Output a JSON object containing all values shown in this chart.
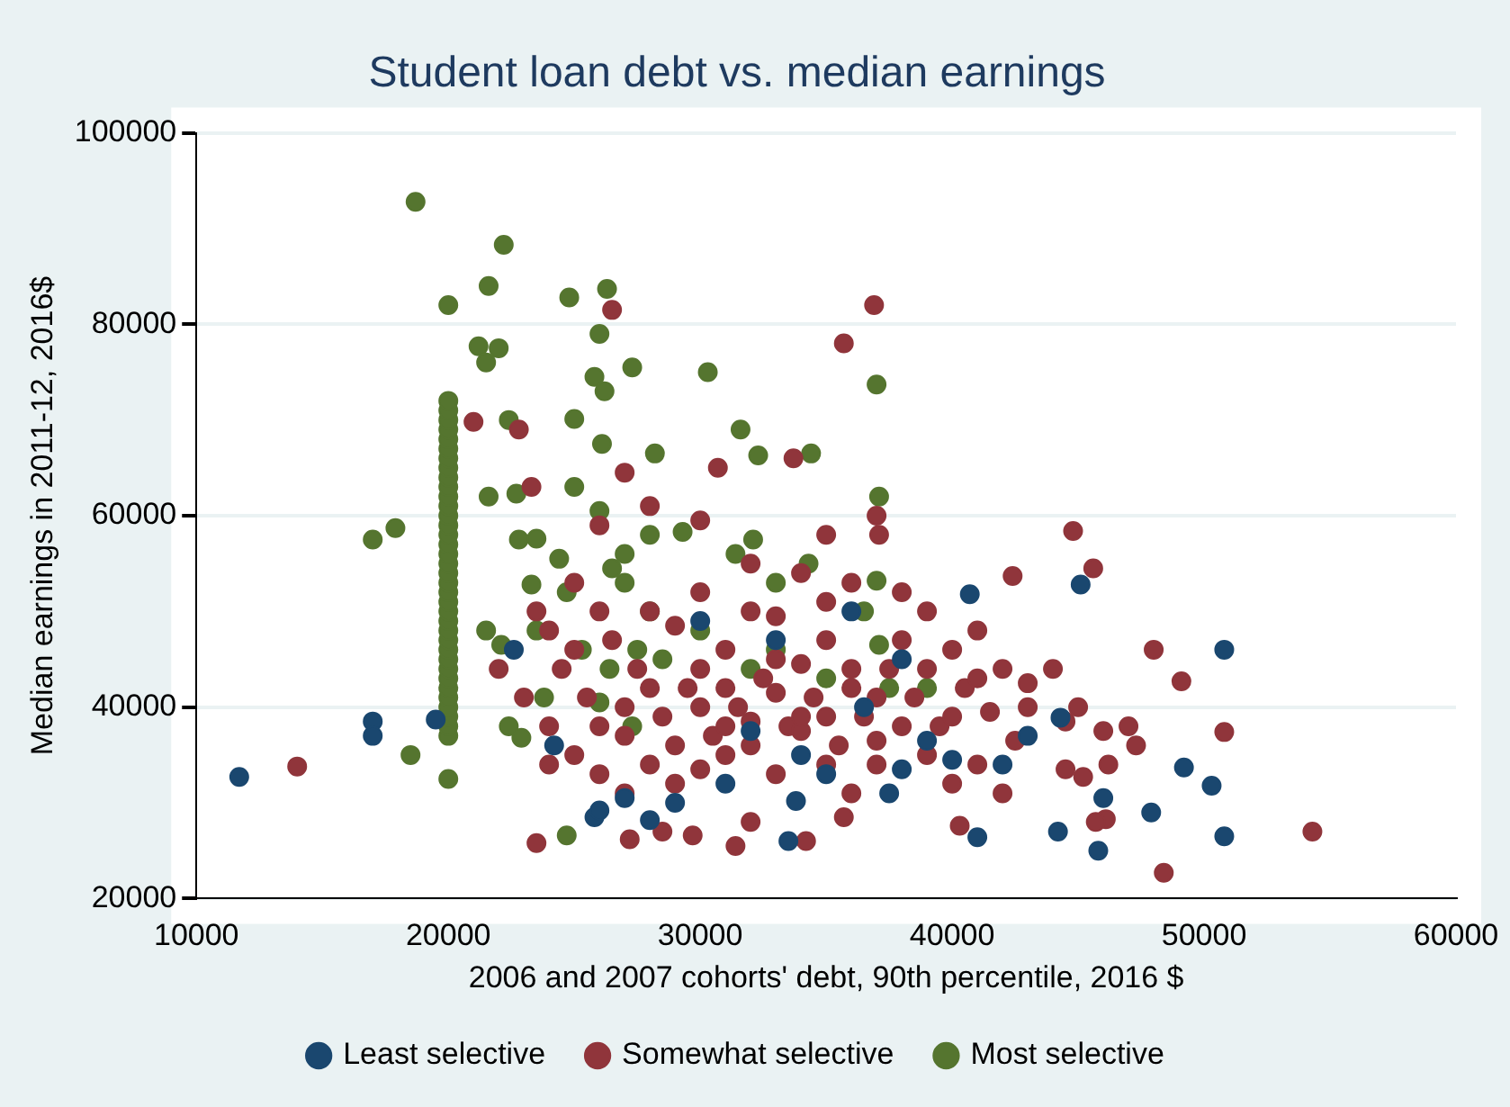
{
  "chart_data": {
    "type": "scatter",
    "title": "Student loan debt vs. median earnings",
    "xlabel": "2006 and 2007 cohorts' debt, 90th percentile, 2016 $",
    "ylabel": "Median earnings in 2011-12, 2016$",
    "xlim": [
      10000,
      60000
    ],
    "xticks": [
      10000,
      20000,
      30000,
      40000,
      50000,
      60000
    ],
    "ylim": [
      20000,
      100000
    ],
    "yticks": [
      20000,
      40000,
      60000,
      80000,
      100000
    ],
    "grid": "y",
    "legend": "bottom",
    "marker": "circle",
    "series": [
      {
        "name": "Least selective",
        "color": "#1a476f",
        "x": [
          11700,
          17000,
          17000,
          19500,
          22600,
          24200,
          25800,
          26000,
          27000,
          28000,
          29000,
          30000,
          31000,
          33000,
          33500,
          33800,
          36000,
          36500,
          38000,
          38000,
          39000,
          40700,
          41000,
          42000,
          43000,
          44200,
          44300,
          45100,
          45800,
          46000,
          47900,
          49200,
          50300,
          50800,
          50800,
          34000,
          32000,
          37500,
          40000,
          35000
        ],
        "values": [
          32700,
          38500,
          37000,
          38700,
          46000,
          36000,
          28500,
          29200,
          30500,
          28200,
          30000,
          49000,
          32000,
          47000,
          26000,
          30200,
          50000,
          40000,
          33500,
          45000,
          36500,
          51800,
          26400,
          34000,
          37000,
          27000,
          38900,
          52800,
          25000,
          30500,
          29000,
          33700,
          31800,
          46000,
          26500,
          35000,
          37500,
          31000,
          34500,
          33000
        ]
      },
      {
        "name": "Somewhat selective",
        "color": "#90353b",
        "x": [
          14000,
          26500,
          36900,
          35700,
          33700,
          30700,
          21000,
          22800,
          23300,
          27000,
          26000,
          28000,
          30000,
          35000,
          37000,
          37100,
          42400,
          44800,
          45600,
          49100,
          48000,
          50800,
          54300,
          48400,
          46100,
          45200,
          46200,
          47300,
          43000,
          42000,
          41000,
          40000,
          39000,
          38000,
          36000,
          34000,
          32000,
          30000,
          28000,
          25000,
          23500,
          22000,
          23000,
          24000,
          25000,
          26000,
          27000,
          28500,
          23500,
          27200,
          29700,
          31400,
          32000,
          34200,
          35700,
          40300,
          45700,
          44500,
          42500,
          41500,
          40500,
          39500,
          38500,
          37500,
          36500,
          35500,
          34500,
          33500,
          32500,
          31500,
          30500,
          29500,
          28500,
          27500,
          26500,
          25500,
          24500,
          24000,
          26000,
          27000,
          28000,
          29000,
          30000,
          31000,
          32000,
          33000,
          34000,
          35000,
          36000,
          37000,
          38000,
          39000,
          40000,
          41000,
          42000,
          43000,
          44000,
          45000,
          46000,
          47000,
          44500,
          31000,
          29000,
          33000,
          35000,
          30000,
          31000,
          32000,
          33000,
          34000,
          35000,
          36000,
          37000,
          38000,
          39000,
          40000,
          41000,
          28000,
          27000,
          26000,
          25000,
          24000,
          29000,
          30000,
          31000,
          32000,
          33000,
          34000,
          35000,
          36000,
          37000
        ],
        "values": [
          33800,
          81500,
          82000,
          78000,
          66000,
          65000,
          69800,
          69000,
          63000,
          64500,
          59000,
          61000,
          59500,
          58000,
          60000,
          58000,
          53700,
          58400,
          54500,
          42700,
          46000,
          37400,
          27000,
          22700,
          28300,
          32700,
          34000,
          36000,
          40000,
          44000,
          48000,
          46000,
          50000,
          52000,
          53000,
          54000,
          55000,
          52000,
          50000,
          53000,
          50000,
          44000,
          41000,
          38000,
          35000,
          33000,
          31000,
          27000,
          25800,
          26200,
          26600,
          25500,
          28000,
          26000,
          28500,
          27600,
          28000,
          33500,
          36500,
          39500,
          42000,
          38000,
          41000,
          44000,
          39000,
          36000,
          41000,
          38000,
          43000,
          40000,
          37000,
          42000,
          39000,
          44000,
          47000,
          41000,
          44000,
          48000,
          50000,
          37000,
          34000,
          32000,
          33500,
          35000,
          38500,
          41500,
          44500,
          47000,
          44000,
          41000,
          38000,
          35000,
          32000,
          34000,
          31000,
          42500,
          44000,
          40000,
          37500,
          38000,
          38500,
          46000,
          48500,
          49500,
          51000,
          40000,
          42000,
          36000,
          33000,
          37500,
          39000,
          42000,
          36500,
          47000,
          44000,
          39000,
          43000,
          42000,
          40000,
          38000,
          46000,
          34000,
          36000,
          44000,
          38000,
          50000,
          45000,
          39000,
          34000,
          31000,
          34000
        ]
      },
      {
        "name": "Most selective",
        "color": "#55752f",
        "x": [
          20000,
          20000,
          20000,
          20000,
          20000,
          20000,
          20000,
          20000,
          20000,
          20000,
          20000,
          20000,
          20000,
          20000,
          20000,
          20000,
          20000,
          20000,
          20000,
          20000,
          20000,
          20000,
          20000,
          20000,
          20000,
          20000,
          20000,
          20000,
          20000,
          20000,
          20000,
          20000,
          20000,
          20000,
          20000,
          20000,
          18700,
          22200,
          21600,
          26300,
          24800,
          20000,
          21200,
          22000,
          21500,
          26000,
          27300,
          30300,
          37000,
          25800,
          26200,
          22400,
          25000,
          26100,
          28200,
          31600,
          32300,
          34400,
          37100,
          17000,
          17900,
          21600,
          22700,
          22800,
          23500,
          24400,
          23300,
          24700,
          26500,
          27000,
          28000,
          29300,
          21500,
          22100,
          23500,
          25300,
          26400,
          27500,
          28500,
          30000,
          31400,
          32100,
          33000,
          35000,
          36500,
          37000,
          37100,
          37500,
          39000,
          23800,
          26000,
          22900,
          18500,
          20000,
          22400,
          24700,
          27300,
          25000,
          26000,
          27000,
          28000,
          34300,
          33000,
          32000
        ],
        "values": [
          37000,
          38000,
          39000,
          40000,
          41000,
          42000,
          43000,
          44000,
          45000,
          46000,
          47000,
          48000,
          49000,
          50000,
          51000,
          52000,
          53000,
          54000,
          55000,
          56000,
          57000,
          58000,
          59000,
          60000,
          61000,
          62000,
          63000,
          64000,
          65000,
          66000,
          67000,
          68000,
          69000,
          70000,
          71000,
          72000,
          92800,
          88300,
          84000,
          83700,
          82800,
          82000,
          77700,
          77500,
          76000,
          79000,
          75500,
          75000,
          73700,
          74500,
          73000,
          70000,
          70100,
          67500,
          66500,
          69000,
          66300,
          66500,
          62000,
          57500,
          58700,
          62000,
          62300,
          57500,
          57600,
          55500,
          52800,
          52000,
          54500,
          53000,
          58000,
          58300,
          48000,
          46500,
          48000,
          46000,
          44000,
          46000,
          45000,
          48000,
          56000,
          57500,
          53000,
          43000,
          50000,
          53200,
          46500,
          42000,
          42000,
          41000,
          40500,
          36800,
          35000,
          32500,
          38000,
          26600,
          38000,
          63000,
          60500,
          56000,
          50000,
          55000,
          46000,
          44000
        ]
      }
    ]
  }
}
